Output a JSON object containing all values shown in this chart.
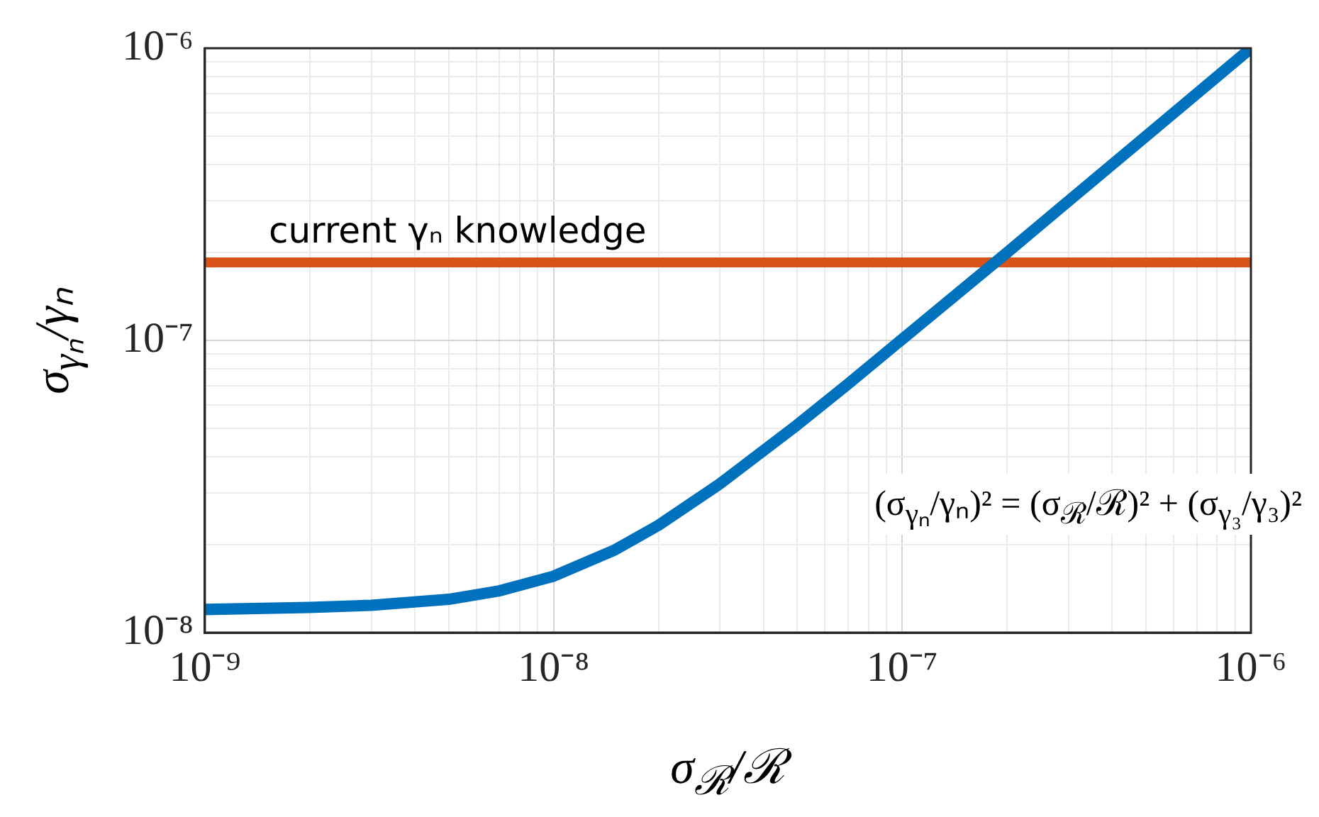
{
  "chart_data": {
    "type": "line",
    "xlabel": "σ$_{ℛ}$/ℛ",
    "ylabel": "σ$_{γₙ}$/γₙ",
    "log": "xy",
    "grid": true,
    "legend": false,
    "marker": "none",
    "line_style": "solid",
    "xlim": [
      1e-09,
      1e-06
    ],
    "ylim": [
      1e-08,
      1e-06
    ],
    "xticks": [
      {
        "value": 1e-09,
        "label": "10⁻⁹"
      },
      {
        "value": 2e-09,
        "label": null
      },
      {
        "value": 3e-09,
        "label": null
      },
      {
        "value": 4e-09,
        "label": null
      },
      {
        "value": 5e-09,
        "label": null
      },
      {
        "value": 6e-09,
        "label": null
      },
      {
        "value": 7e-09,
        "label": null
      },
      {
        "value": 8e-09,
        "label": null
      },
      {
        "value": 9e-09,
        "label": null
      },
      {
        "value": 1e-08,
        "label": "10⁻⁸"
      },
      {
        "value": 2e-08,
        "label": null
      },
      {
        "value": 3e-08,
        "label": null
      },
      {
        "value": 4e-08,
        "label": null
      },
      {
        "value": 5e-08,
        "label": null
      },
      {
        "value": 6e-08,
        "label": null
      },
      {
        "value": 7e-08,
        "label": null
      },
      {
        "value": 8e-08,
        "label": null
      },
      {
        "value": 9e-08,
        "label": null
      },
      {
        "value": 1e-07,
        "label": "10⁻⁷"
      },
      {
        "value": 2e-07,
        "label": null
      },
      {
        "value": 3e-07,
        "label": null
      },
      {
        "value": 4e-07,
        "label": null
      },
      {
        "value": 5e-07,
        "label": null
      },
      {
        "value": 6e-07,
        "label": null
      },
      {
        "value": 7e-07,
        "label": null
      },
      {
        "value": 8e-07,
        "label": null
      },
      {
        "value": 9e-07,
        "label": null
      },
      {
        "value": 1e-06,
        "label": "10⁻⁶"
      }
    ],
    "yticks": [
      {
        "value": 1e-08,
        "label": "10⁻⁸"
      },
      {
        "value": 2e-08,
        "label": null
      },
      {
        "value": 3e-08,
        "label": null
      },
      {
        "value": 4e-08,
        "label": null
      },
      {
        "value": 5e-08,
        "label": null
      },
      {
        "value": 6e-08,
        "label": null
      },
      {
        "value": 7e-08,
        "label": null
      },
      {
        "value": 8e-08,
        "label": null
      },
      {
        "value": 9e-08,
        "label": null
      },
      {
        "value": 1e-07,
        "label": "10⁻⁷"
      },
      {
        "value": 2e-07,
        "label": null
      },
      {
        "value": 3e-07,
        "label": null
      },
      {
        "value": 4e-07,
        "label": null
      },
      {
        "value": 5e-07,
        "label": null
      },
      {
        "value": 6e-07,
        "label": null
      },
      {
        "value": 7e-07,
        "label": null
      },
      {
        "value": 8e-07,
        "label": null
      },
      {
        "value": 9e-07,
        "label": null
      },
      {
        "value": 1e-06,
        "label": "10⁻⁶"
      }
    ],
    "series": [
      {
        "color": "#0072bd",
        "x": [
          1e-09,
          2e-09,
          3e-09,
          5e-09,
          7e-09,
          1e-08,
          1.5e-08,
          2e-08,
          3e-08,
          5e-08,
          7e-08,
          1e-07,
          2e-07,
          3e-07,
          5e-07,
          1e-06
        ],
        "values": [
          1.2e-08,
          1.22e-08,
          1.24e-08,
          1.3e-08,
          1.39e-08,
          1.56e-08,
          1.92e-08,
          2.33e-08,
          3.23e-08,
          5.14e-08,
          7.1e-08,
          1.01e-07,
          2e-07,
          3e-07,
          5e-07,
          1e-06
        ]
      }
    ],
    "ref_lines": [
      {
        "axis": "y",
        "value": 1.85e-07,
        "label": "current γₙ knowledge",
        "color": "#d95319"
      }
    ],
    "annotations": [
      "(σ$_{γₙ}$/γₙ)² = (σ$_{ℛ}$/ℛ)² + (σ$_{γ₃}$/γ₃)²"
    ]
  }
}
